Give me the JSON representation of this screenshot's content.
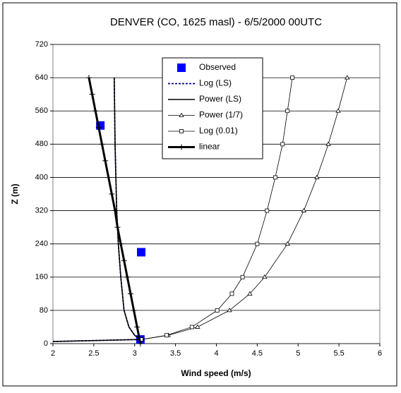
{
  "chart_data": {
    "type": "line",
    "title": "DENVER (CO, 1625 masl) - 6/5/2000 00UTC",
    "x_label": "Wind speed (m/s)",
    "y_label": "Z (m)",
    "xlim": [
      2,
      6
    ],
    "xticks": [
      2,
      2.5,
      3,
      3.5,
      4,
      4.5,
      5,
      5.5,
      6
    ],
    "ylim": [
      0,
      720
    ],
    "yticks": [
      0,
      80,
      160,
      240,
      320,
      400,
      480,
      560,
      640,
      720
    ],
    "grid": true,
    "legend": "top-center",
    "series": [
      {
        "name": "Observed",
        "color": "#0000ff",
        "marker": "square",
        "line": "none",
        "x": [
          3.07,
          3.08,
          2.58
        ],
        "values": [
          10,
          220,
          525
        ]
      },
      {
        "name": "Log (LS)",
        "color": "#00008b",
        "marker": "none",
        "line": "dashed",
        "x": [
          2,
          3.07,
          3.0,
          2.93,
          2.87,
          2.83,
          2.8,
          2.78,
          2.77,
          2.76,
          2.755,
          2.75
        ],
        "values": [
          5,
          10,
          20,
          40,
          80,
          160,
          240,
          320,
          400,
          480,
          560,
          640
        ]
      },
      {
        "name": "Power (LS)",
        "color": "#000000",
        "marker": "none",
        "line": "solid",
        "x": [
          2,
          3.07,
          3.0,
          2.93,
          2.87,
          2.83,
          2.8,
          2.78,
          2.77,
          2.76,
          2.755,
          2.75
        ],
        "values": [
          5,
          10,
          20,
          40,
          80,
          160,
          240,
          320,
          400,
          480,
          560,
          640
        ]
      },
      {
        "name": "Power (1/7)",
        "color": "#000000",
        "marker": "triangle",
        "line": "thin",
        "x": [
          3.09,
          3.41,
          3.77,
          4.16,
          4.41,
          4.59,
          4.87,
          5.07,
          5.23,
          5.37,
          5.49,
          5.6
        ],
        "values": [
          10,
          20,
          40,
          80,
          120,
          160,
          240,
          320,
          400,
          480,
          560,
          640
        ]
      },
      {
        "name": "Log (0.01)",
        "color": "#000000",
        "marker": "open-square",
        "line": "thin",
        "x": [
          3.08,
          3.39,
          3.7,
          4.01,
          4.19,
          4.32,
          4.5,
          4.62,
          4.72,
          4.81,
          4.87,
          4.93
        ],
        "values": [
          10,
          20,
          40,
          80,
          120,
          160,
          240,
          320,
          400,
          480,
          560,
          640
        ]
      },
      {
        "name": "linear",
        "color": "#000000",
        "marker": "plus",
        "line": "thick",
        "x": [
          3.07,
          3.03,
          2.99,
          2.95,
          2.91,
          2.87,
          2.83,
          2.79,
          2.76,
          2.72,
          2.68,
          2.64,
          2.6,
          2.56,
          2.52,
          2.48,
          2.44
        ],
        "values": [
          0,
          40,
          80,
          120,
          160,
          200,
          240,
          280,
          320,
          360,
          400,
          440,
          480,
          520,
          560,
          600,
          640
        ]
      }
    ]
  }
}
